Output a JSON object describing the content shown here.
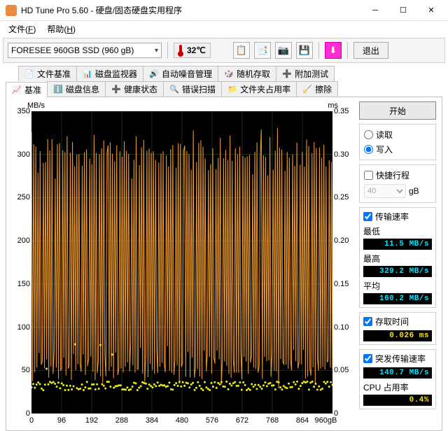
{
  "window": {
    "title": "HD Tune Pro 5.60 - 硬盘/固态硬盘实用程序"
  },
  "menu": {
    "file": "文(F)",
    "file_label": "文件(F)",
    "help": "帮助(H)"
  },
  "toolbar": {
    "drive": "FORESEE 960GB SSD (960 gB)",
    "temp": "32℃",
    "exit": "退出"
  },
  "tabs_row1": [
    {
      "icon": "📄",
      "label": "文件基准",
      "color": "#c800c8"
    },
    {
      "icon": "📊",
      "label": "磁盘监视器",
      "color": "#2a8a2a"
    },
    {
      "icon": "🔊",
      "label": "自动噪音管理",
      "color": "#555"
    },
    {
      "icon": "🎲",
      "label": "随机存取",
      "color": "#c04020"
    },
    {
      "icon": "➕",
      "label": "附加测试",
      "color": "#1060c0"
    }
  ],
  "tabs_row2": [
    {
      "icon": "📈",
      "label": "基准",
      "color": "#c0a000",
      "active": true
    },
    {
      "icon": "ℹ️",
      "label": "磁盘信息",
      "color": "#1060c0"
    },
    {
      "icon": "➕",
      "label": "健康状态",
      "color": "#c00000"
    },
    {
      "icon": "🔍",
      "label": "错误扫描",
      "color": "#a00000"
    },
    {
      "icon": "📁",
      "label": "文件夹占用率",
      "color": "#c0a000"
    },
    {
      "icon": "🧹",
      "label": "擦除",
      "color": "#666"
    }
  ],
  "chart": {
    "type": "line+scatter",
    "background_color": "#000000",
    "grid_color": "#1a3a1a",
    "series_speed_color": "#e8952e",
    "series_access_color": "#e8e820",
    "label_fontsize": 11,
    "y_left_label": "MB/s",
    "y_right_label": "ms",
    "ylim_left": [
      0,
      350
    ],
    "ylim_right": [
      0,
      0.35
    ],
    "y_ticks_left": [
      0,
      50,
      100,
      150,
      200,
      250,
      300,
      350
    ],
    "y_ticks_right": [
      "0",
      "0.05",
      "0.10",
      "0.15",
      "0.20",
      "0.25",
      "0.30",
      "0.35"
    ],
    "xlim": [
      0,
      960
    ],
    "x_ticks": [
      0,
      96,
      192,
      288,
      384,
      480,
      576,
      672,
      768,
      864
    ],
    "x_last_label": "960gB",
    "speed_series_sample": [
      320,
      40,
      310,
      60,
      300,
      50,
      280,
      70,
      315,
      45,
      60,
      290,
      55,
      300,
      50,
      320,
      40,
      310,
      60,
      305,
      50,
      70,
      280,
      55,
      300,
      45,
      310,
      60,
      50,
      295,
      70,
      300,
      55,
      315,
      45,
      60,
      300,
      50,
      305,
      65,
      290,
      50,
      310,
      45,
      300,
      60,
      50,
      295,
      55,
      305,
      45,
      310,
      60,
      50,
      300,
      65,
      295,
      50,
      310,
      45,
      300,
      55,
      60,
      290,
      50,
      305,
      45,
      310,
      60,
      50,
      300
    ],
    "access_baseline": 0.03,
    "access_jitter": 0.01
  },
  "side": {
    "start": "开始",
    "mode_read": "读取",
    "mode_write": "写入",
    "mode_selected": "write",
    "quick": "快捷行程",
    "quick_checked": false,
    "blocksize_value": "40",
    "blocksize_unit": "gB",
    "rate_title": "传输速率",
    "rate_checked": true,
    "min_label": "最低",
    "min_value": "11.5 MB/s",
    "max_label": "最高",
    "max_value": "329.2 MB/s",
    "avg_label": "平均",
    "avg_value": "160.2 MB/s",
    "access_title": "存取时间",
    "access_checked": true,
    "access_value": "0.026 ms",
    "burst_title": "突发传输速率",
    "burst_checked": true,
    "burst_value": "140.7 MB/s",
    "cpu_label": "CPU 占用率",
    "cpu_value": "0.4%"
  },
  "colors": {
    "lcd_cyan": "#00e6ff",
    "lcd_yellow": "#ffe600"
  }
}
